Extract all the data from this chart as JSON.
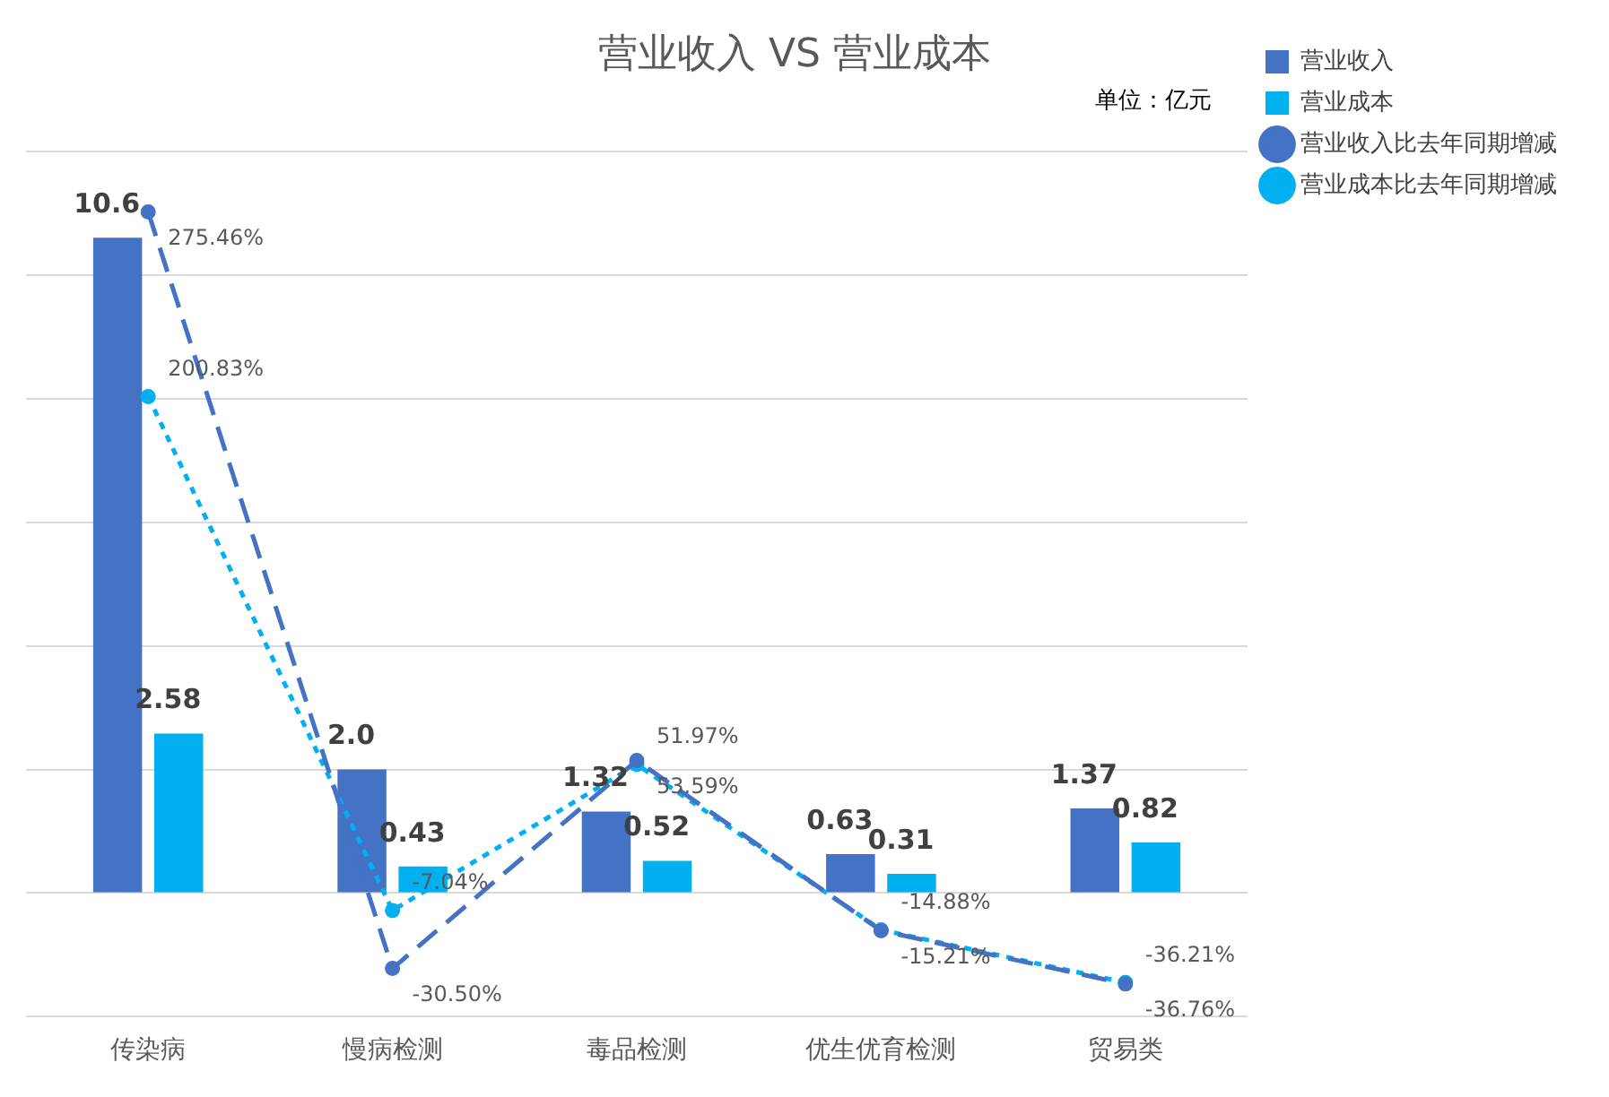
{
  "chart_data": {
    "type": "bar",
    "title": "营业收入 VS 营业成本",
    "annotations": [
      "单位：亿元"
    ],
    "categories": [
      "传染病",
      "慢病检测",
      "毒品检测",
      "优生优育检测",
      "贸易类"
    ],
    "series": [
      {
        "name": "营业收入",
        "color": "#4472c4",
        "values": [
          10.6,
          2.0,
          1.32,
          0.63,
          1.37
        ],
        "value_labels": [
          "10.6",
          "2.0",
          "1.32",
          "0.63",
          "1.37"
        ]
      },
      {
        "name": "营业成本",
        "color": "#00b0f0",
        "values": [
          2.58,
          0.43,
          0.52,
          0.31,
          0.82
        ],
        "value_labels": [
          "2.58",
          "0.43",
          "0.52",
          "0.31",
          "0.82"
        ]
      },
      {
        "name": "营业收入比去年同期增减",
        "type": "line",
        "axis": "y2",
        "line_style": "dashed",
        "color": "#4472c4",
        "values": [
          275.46,
          -30.5,
          53.59,
          -15.21,
          -36.76
        ],
        "value_labels": [
          "275.46%",
          "-30.50%",
          "53.59%",
          "-15.21%",
          "-36.76%"
        ]
      },
      {
        "name": "营业成本比去年同期增减",
        "type": "line",
        "axis": "y2",
        "line_style": "dotted",
        "color": "#00b0f0",
        "values": [
          200.83,
          -7.04,
          51.97,
          -14.88,
          -36.21
        ],
        "value_labels": [
          "200.83%",
          "-7.04%",
          "51.97%",
          "-14.88%",
          "-36.21%"
        ]
      }
    ],
    "ylim": [
      -2,
      12
    ],
    "yticks": [
      {
        "value": -2,
        "label": null
      },
      {
        "value": 0,
        "label": null
      },
      {
        "value": 2,
        "label": null
      },
      {
        "value": 4,
        "label": null
      },
      {
        "value": 6,
        "label": null
      },
      {
        "value": 8,
        "label": null
      },
      {
        "value": 10,
        "label": null
      },
      {
        "value": 12,
        "label": null
      }
    ],
    "y2lim": [
      -50,
      300
    ],
    "grid": "y",
    "tick_labels": "x",
    "legend": "right",
    "marker": "circle"
  }
}
